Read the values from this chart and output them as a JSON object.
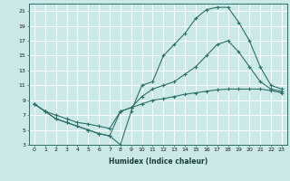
{
  "xlabel": "Humidex (Indice chaleur)",
  "background_color": "#cce9e9",
  "grid_color": "#ffffff",
  "line_color": "#2d7068",
  "xlim": [
    -0.5,
    23.5
  ],
  "ylim": [
    3,
    22
  ],
  "xticks": [
    0,
    1,
    2,
    3,
    4,
    5,
    6,
    7,
    8,
    9,
    10,
    11,
    12,
    13,
    14,
    15,
    16,
    17,
    18,
    19,
    20,
    21,
    22,
    23
  ],
  "yticks": [
    3,
    5,
    7,
    9,
    11,
    13,
    15,
    17,
    19,
    21
  ],
  "line1_x": [
    0,
    1,
    2,
    3,
    4,
    5,
    6,
    7,
    8,
    9,
    10,
    11,
    12,
    13,
    14,
    15,
    16,
    17,
    18,
    19,
    20,
    21,
    22,
    23
  ],
  "line1_y": [
    8.5,
    7.5,
    6.5,
    6.0,
    5.5,
    5.0,
    4.5,
    4.2,
    3.0,
    7.5,
    11.0,
    11.5,
    15.0,
    16.5,
    18.0,
    20.0,
    21.2,
    21.5,
    21.5,
    19.5,
    17.0,
    13.5,
    11.0,
    10.5
  ],
  "line2_x": [
    0,
    1,
    2,
    3,
    4,
    5,
    6,
    7,
    8,
    9,
    10,
    11,
    12,
    13,
    14,
    15,
    16,
    17,
    18,
    19,
    20,
    21,
    22,
    23
  ],
  "line2_y": [
    8.5,
    7.5,
    6.5,
    6.0,
    5.5,
    5.0,
    4.5,
    4.2,
    7.5,
    8.0,
    9.5,
    10.5,
    11.0,
    11.5,
    12.5,
    13.5,
    15.0,
    16.5,
    17.0,
    15.5,
    13.5,
    11.5,
    10.5,
    10.2
  ],
  "line3_x": [
    0,
    1,
    2,
    3,
    4,
    5,
    6,
    7,
    8,
    9,
    10,
    11,
    12,
    13,
    14,
    15,
    16,
    17,
    18,
    19,
    20,
    21,
    22,
    23
  ],
  "line3_y": [
    8.5,
    7.5,
    7.0,
    6.5,
    6.0,
    5.8,
    5.5,
    5.2,
    7.5,
    8.0,
    8.5,
    9.0,
    9.2,
    9.5,
    9.8,
    10.0,
    10.2,
    10.4,
    10.5,
    10.5,
    10.5,
    10.5,
    10.3,
    10.0
  ]
}
